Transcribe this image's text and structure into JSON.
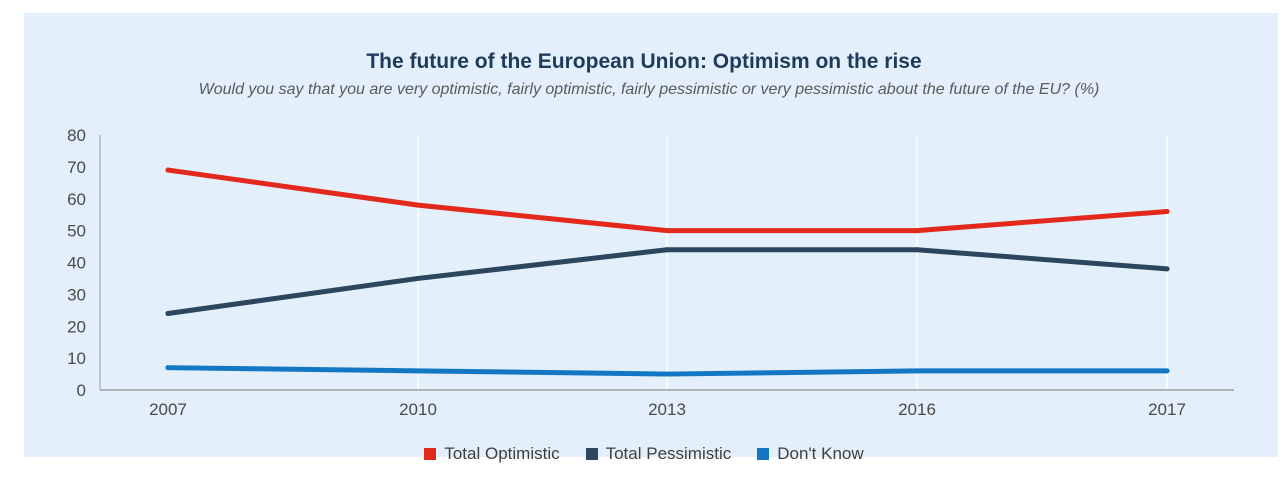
{
  "chart_data": {
    "type": "line",
    "title": "The future of the European Union: Optimism on the rise",
    "subtitle": "Would you say that you are very optimistic, fairly optimistic, fairly pessimistic or very pessimistic about the future of the EU? (%)",
    "x": [
      "2007",
      "2010",
      "2013",
      "2016",
      "2017"
    ],
    "series": [
      {
        "name": "Total Optimistic",
        "color": "#e3291b",
        "values": [
          69,
          58,
          50,
          50,
          56
        ]
      },
      {
        "name": "Total Pessimistic",
        "color": "#2c4660",
        "values": [
          24,
          35,
          44,
          44,
          38
        ]
      },
      {
        "name": "Don't Know",
        "color": "#1378c4",
        "values": [
          7,
          6,
          5,
          6,
          6
        ]
      }
    ],
    "ylim": [
      0,
      80
    ],
    "yticks": [
      "0",
      "10",
      "20",
      "30",
      "40",
      "50",
      "60",
      "70",
      "80"
    ],
    "xlabel": "",
    "ylabel": "",
    "grid": "vertical",
    "legend": "bottom"
  }
}
